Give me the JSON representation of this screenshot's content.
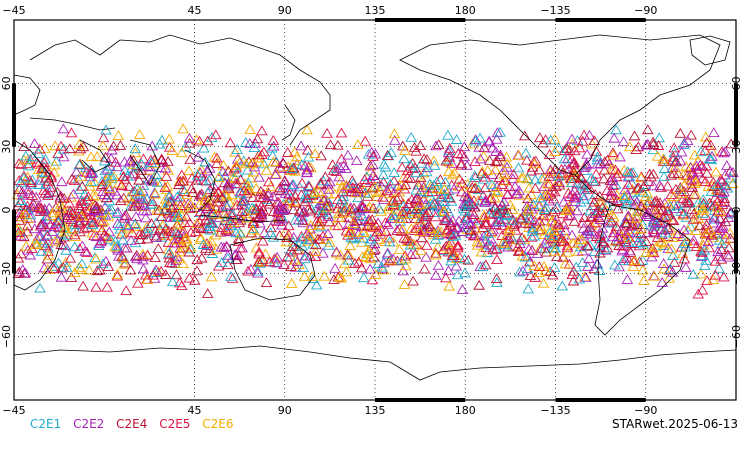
{
  "map": {
    "projection": "equirectangular",
    "center_longitude": 135,
    "lon_ticks_top": [
      "45",
      "90",
      "135",
      "180",
      "−135",
      "−90",
      "−45"
    ],
    "lon_ticks_bottom": [
      "45",
      "90",
      "135",
      "180",
      "−135",
      "−90",
      "−45"
    ],
    "lat_ticks": [
      "60",
      "30",
      "0",
      "−30",
      "−60"
    ],
    "grid": "dotted",
    "colors": {
      "frame": "#000000",
      "coast": "#000000",
      "grid": "#000000"
    }
  },
  "legend": [
    {
      "label": "C2E1",
      "color": "#22aacc"
    },
    {
      "label": "C2E2",
      "color": "#aa22bb"
    },
    {
      "label": "C2E4",
      "color": "#bb1133"
    },
    {
      "label": "C2E5",
      "color": "#dd1144"
    },
    {
      "label": "C2E6",
      "color": "#f5aa00"
    }
  ],
  "stamp": "STARwet.2025-06-13",
  "observations": {
    "marker": "triangle-outline",
    "lat_band": [
      -40,
      40
    ],
    "density": "dense"
  }
}
